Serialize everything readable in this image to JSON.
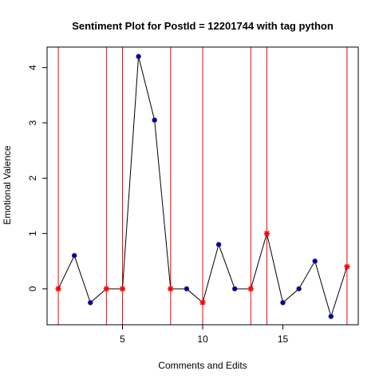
{
  "chart_data": {
    "type": "line",
    "title": "Sentiment Plot for PostId =  12201744  with tag  python",
    "xlabel": "Comments and Edits",
    "ylabel": "Emotional Valence",
    "xlim": [
      0.3,
      19.7
    ],
    "ylim": [
      -0.65,
      4.37
    ],
    "x_ticks": [
      5,
      10,
      15
    ],
    "y_ticks": [
      0,
      1,
      2,
      3,
      4
    ],
    "x": [
      1,
      2,
      3,
      4,
      5,
      6,
      7,
      8,
      9,
      10,
      11,
      12,
      13,
      14,
      15,
      16,
      17,
      18,
      19
    ],
    "y": [
      0,
      0.6,
      -0.25,
      0,
      0,
      4.2,
      3.05,
      0,
      0,
      -0.25,
      0.8,
      0,
      0,
      1,
      -0.25,
      0,
      0.5,
      -0.5,
      0.4
    ],
    "edit_points": [
      1,
      4,
      5,
      8,
      10,
      13,
      14,
      19
    ],
    "vertical_lines": [
      1,
      4,
      5,
      8,
      10,
      13,
      14,
      19
    ],
    "colors": {
      "line": "#000000",
      "comment_point": "#00008B",
      "edit_point": "#FF0000",
      "vertical_line": "#FF0000"
    }
  }
}
